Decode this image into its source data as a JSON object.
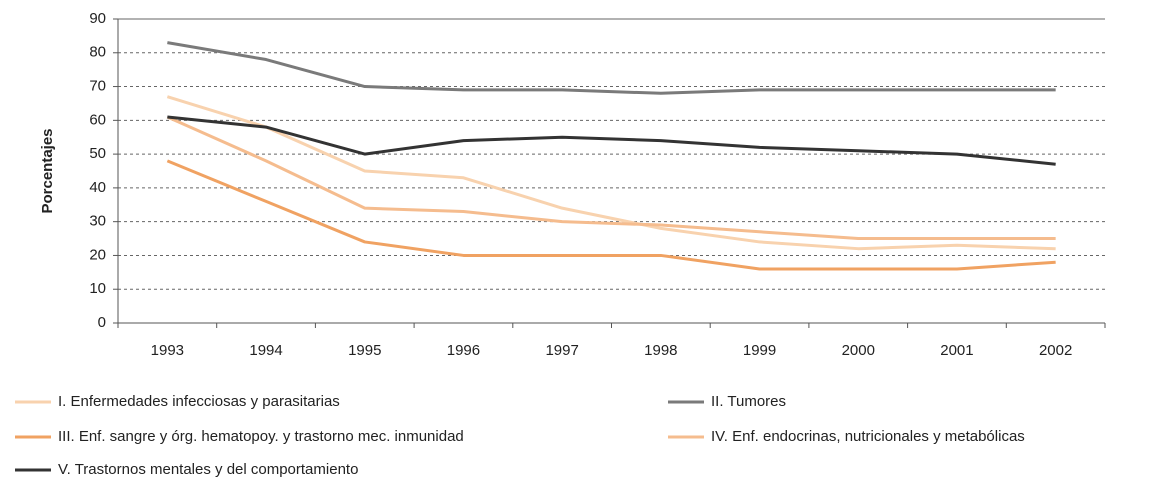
{
  "chart_data": {
    "type": "line",
    "y_label": "Porcentajes",
    "categories": [
      "1993",
      "1994",
      "1995",
      "1996",
      "1997",
      "1998",
      "1999",
      "2000",
      "2001",
      "2002"
    ],
    "ylim": [
      0,
      90
    ],
    "yticks": [
      0,
      10,
      20,
      30,
      40,
      50,
      60,
      70,
      80,
      90
    ],
    "grid": true,
    "series": [
      {
        "name": "I. Enfermedades infecciosas y parasitarias",
        "color": "#f8d2ae",
        "values": [
          67,
          58,
          45,
          43,
          34,
          28,
          24,
          22,
          23,
          22
        ]
      },
      {
        "name": "II. Tumores",
        "color": "#7a7a7a",
        "values": [
          83,
          78,
          70,
          69,
          69,
          68,
          69,
          69,
          69,
          69
        ]
      },
      {
        "name": "III. Enf. sangre y órg. hematopoy. y trastorno mec. inmunidad",
        "color": "#f0a262",
        "values": [
          48,
          36,
          24,
          20,
          20,
          20,
          16,
          16,
          16,
          18
        ]
      },
      {
        "name": "IV. Enf. endocrinas, nutricionales y metabólicas",
        "color": "#f5bc8e",
        "values": [
          61,
          48,
          34,
          33,
          30,
          29,
          27,
          25,
          25,
          25
        ]
      },
      {
        "name": "V. Trastornos mentales y del comportamiento",
        "color": "#333333",
        "values": [
          61,
          58,
          50,
          54,
          55,
          54,
          52,
          51,
          50,
          47
        ]
      }
    ]
  }
}
